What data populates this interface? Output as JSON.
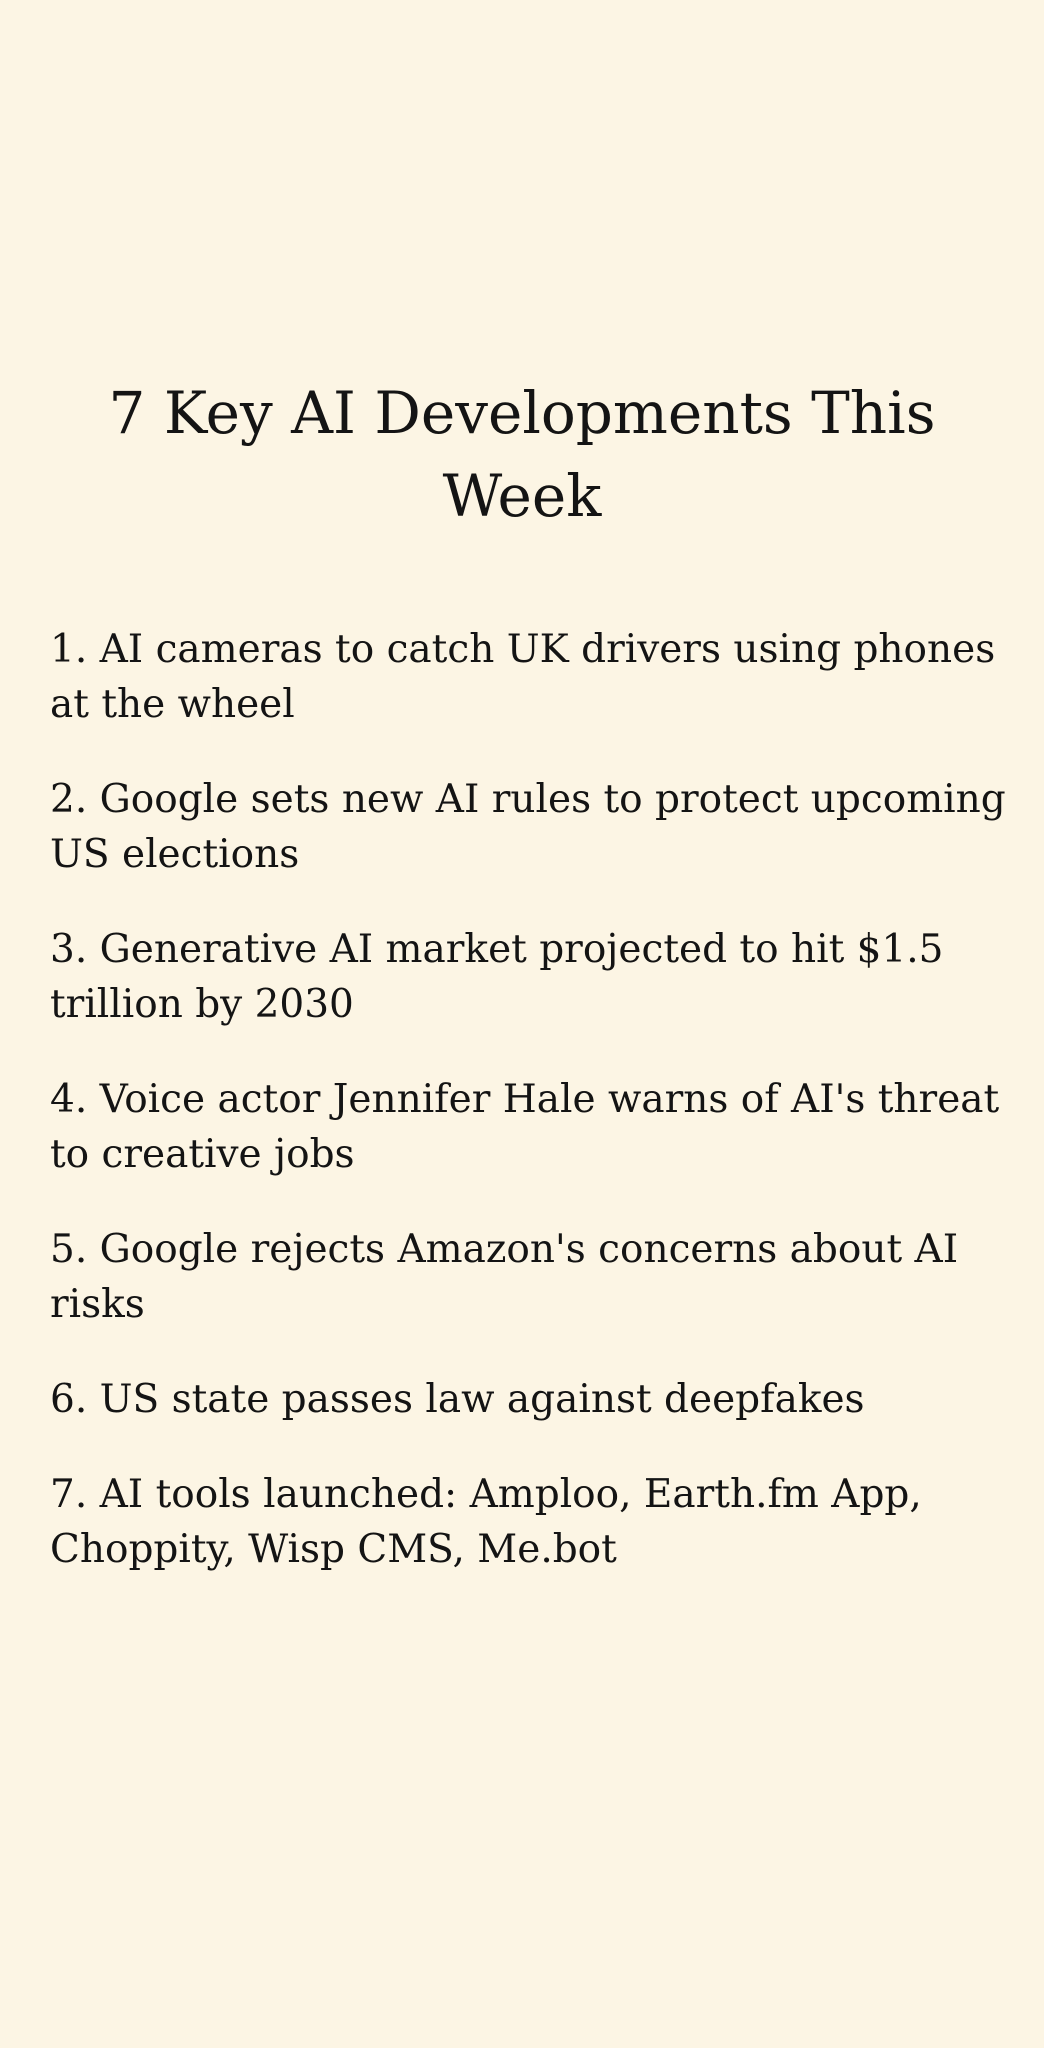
{
  "page": {
    "background_color": "#fcf5e4",
    "text_color": "#141414"
  },
  "headline": {
    "title": "7 Key AI Developments This Week"
  },
  "items": [
    {
      "text": "1. AI cameras to catch UK drivers using phones at the wheel"
    },
    {
      "text": "2. Google sets new AI rules to protect upcoming US elections"
    },
    {
      "text": "3. Generative AI market projected to hit $1.5 trillion by 2030"
    },
    {
      "text": "4. Voice actor Jennifer Hale warns of AI's threat to creative jobs"
    },
    {
      "text": "5. Google rejects Amazon's concerns about AI risks"
    },
    {
      "text": "6. US state passes law against deepfakes"
    },
    {
      "text": "7. AI tools launched: Amploo, Earth.fm App, Choppity, Wisp CMS, Me.bot"
    }
  ]
}
